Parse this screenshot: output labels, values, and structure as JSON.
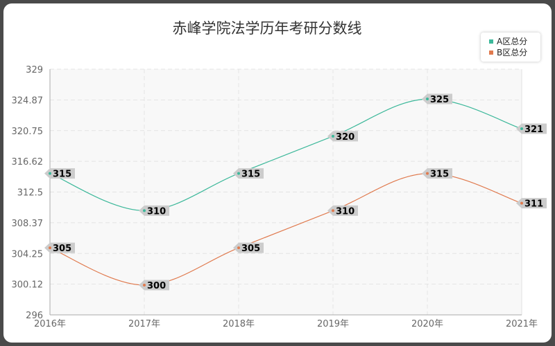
{
  "chart_data": {
    "type": "line",
    "title": "赤峰学院法学历年考研分数线",
    "categories": [
      "2016年",
      "2017年",
      "2018年",
      "2019年",
      "2020年",
      "2021年"
    ],
    "series": [
      {
        "name": "A区总分",
        "color": "#3cb89a",
        "values": [
          315,
          310,
          315,
          320,
          325,
          321
        ]
      },
      {
        "name": "B区总分",
        "color": "#e07a4e",
        "values": [
          305,
          300,
          305,
          310,
          315,
          311
        ]
      }
    ],
    "ylim": [
      296,
      329
    ],
    "yticks": [
      "296",
      "300.12",
      "304.25",
      "308.37",
      "312.5",
      "316.62",
      "320.75",
      "324.87",
      "329"
    ],
    "ytick_values": [
      296,
      300.12,
      304.25,
      308.37,
      312.5,
      316.62,
      320.75,
      324.87,
      329
    ],
    "grid": true,
    "legend_position": "top-right"
  }
}
